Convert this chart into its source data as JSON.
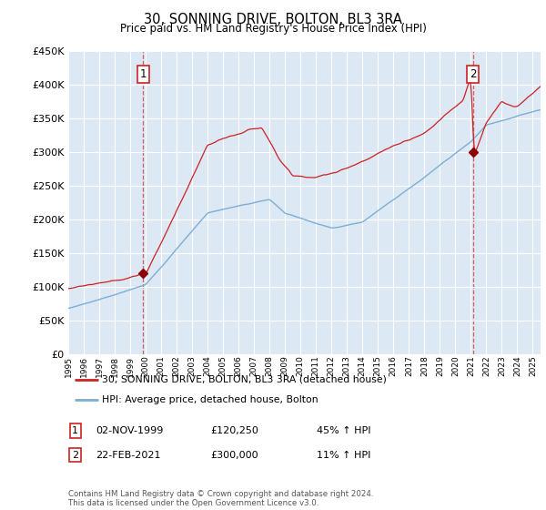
{
  "title": "30, SONNING DRIVE, BOLTON, BL3 3RA",
  "subtitle": "Price paid vs. HM Land Registry's House Price Index (HPI)",
  "legend_line1": "30, SONNING DRIVE, BOLTON, BL3 3RA (detached house)",
  "legend_line2": "HPI: Average price, detached house, Bolton",
  "annotation1_date": "02-NOV-1999",
  "annotation1_price": "£120,250",
  "annotation1_hpi": "45% ↑ HPI",
  "annotation2_date": "22-FEB-2021",
  "annotation2_price": "£300,000",
  "annotation2_hpi": "11% ↑ HPI",
  "footer": "Contains HM Land Registry data © Crown copyright and database right 2024.\nThis data is licensed under the Open Government Licence v3.0.",
  "ylim": [
    0,
    450000
  ],
  "yticks": [
    0,
    50000,
    100000,
    150000,
    200000,
    250000,
    300000,
    350000,
    400000,
    450000
  ],
  "hpi_color": "#7bafd4",
  "price_color": "#cc2222",
  "bg_color": "#dde8f5",
  "grid_color": "#ffffff",
  "annotation_color": "#cc2222",
  "sale1_x": 1999.84,
  "sale1_y": 120250,
  "sale2_x": 2021.13,
  "sale2_y": 300000,
  "xmin": 1995,
  "xmax": 2025.5
}
